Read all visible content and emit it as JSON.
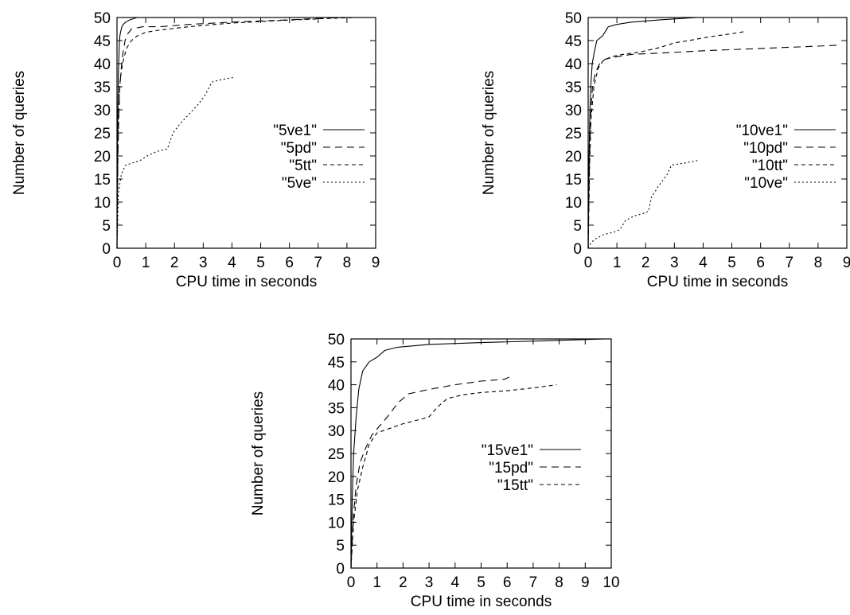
{
  "chart_data": [
    {
      "type": "line",
      "title": "",
      "xlabel": "CPU time in seconds",
      "ylabel": "Number of queries",
      "xlim": [
        0,
        9
      ],
      "ylim": [
        0,
        50
      ],
      "xticks": [
        0,
        1,
        2,
        3,
        4,
        5,
        6,
        7,
        8,
        9
      ],
      "yticks": [
        0,
        5,
        10,
        15,
        20,
        25,
        30,
        35,
        40,
        45,
        50
      ],
      "grid": false,
      "legend": "right-middle",
      "series": [
        {
          "name": "\"5ve1\"",
          "dash": "solid",
          "x": [
            0,
            0.02,
            0.05,
            0.08,
            0.1,
            0.13,
            0.17,
            0.22,
            0.3,
            0.45,
            0.7,
            1.2
          ],
          "y": [
            0,
            25,
            38,
            44,
            46,
            47,
            48,
            48.5,
            49,
            49.5,
            50,
            50
          ]
        },
        {
          "name": "\"5pd\"",
          "dash": "dash",
          "x": [
            0,
            0.03,
            0.07,
            0.1,
            0.15,
            0.2,
            0.28,
            0.38,
            0.5,
            0.9,
            1.5,
            2.5,
            4,
            6,
            7.8
          ],
          "y": [
            0,
            20,
            30,
            35,
            39,
            42,
            45,
            46.5,
            47.5,
            48,
            48,
            48.5,
            49,
            49.5,
            50
          ]
        },
        {
          "name": "\"5tt\"",
          "dash": "short-dash",
          "x": [
            0,
            0.04,
            0.08,
            0.12,
            0.18,
            0.25,
            0.35,
            0.5,
            0.7,
            1,
            1.5,
            2.2,
            3,
            4,
            5.5,
            7,
            8.3
          ],
          "y": [
            0,
            25,
            33,
            37,
            39.5,
            41.5,
            43.5,
            45,
            46,
            46.8,
            47.3,
            47.8,
            48.3,
            48.8,
            49.3,
            49.7,
            50
          ]
        },
        {
          "name": "\"5ve\"",
          "dash": "dot",
          "x": [
            0,
            0.05,
            0.15,
            0.3,
            0.8,
            1.05,
            1.4,
            1.75,
            1.95,
            2.2,
            2.5,
            2.8,
            3.05,
            3.3,
            3.6,
            4.05
          ],
          "y": [
            0,
            12,
            16,
            18,
            19,
            20,
            21,
            21.5,
            25,
            27,
            29,
            31,
            33,
            36,
            36.5,
            37
          ]
        }
      ]
    },
    {
      "type": "line",
      "title": "",
      "xlabel": "CPU time in seconds",
      "ylabel": "Number of queries",
      "xlim": [
        0,
        9
      ],
      "ylim": [
        0,
        50
      ],
      "xticks": [
        0,
        1,
        2,
        3,
        4,
        5,
        6,
        7,
        8,
        9
      ],
      "yticks": [
        0,
        5,
        10,
        15,
        20,
        25,
        30,
        35,
        40,
        45,
        50
      ],
      "grid": false,
      "legend": "right-middle",
      "series": [
        {
          "name": "\"10ve1\"",
          "dash": "solid",
          "x": [
            0,
            0.03,
            0.06,
            0.1,
            0.14,
            0.2,
            0.3,
            0.5,
            0.7,
            1,
            1.5,
            2.5,
            3.8
          ],
          "y": [
            0,
            20,
            30,
            36,
            40,
            42,
            45,
            46,
            48,
            48.5,
            49,
            49.5,
            50
          ]
        },
        {
          "name": "\"10pd\"",
          "dash": "dash",
          "x": [
            0,
            0.05,
            0.1,
            0.15,
            0.25,
            0.4,
            0.6,
            1,
            1.5,
            2.5,
            4,
            6,
            8,
            8.7
          ],
          "y": [
            0,
            20,
            30,
            35,
            38,
            40,
            41,
            41.5,
            42,
            42.3,
            42.8,
            43.3,
            43.8,
            44
          ]
        },
        {
          "name": "\"10tt\"",
          "dash": "short-dash",
          "x": [
            0,
            0.05,
            0.1,
            0.2,
            0.35,
            0.5,
            0.8,
            1.2,
            1.8,
            2.5,
            3,
            3.5,
            4.2,
            5,
            5.5
          ],
          "y": [
            0,
            18,
            28,
            35,
            39,
            40.5,
            41.5,
            42,
            42.5,
            43.5,
            44.5,
            45,
            45.8,
            46.5,
            47
          ]
        },
        {
          "name": "\"10ve\"",
          "dash": "dot",
          "x": [
            0,
            0.1,
            0.25,
            0.55,
            0.9,
            1.1,
            1.3,
            1.6,
            1.9,
            2.1,
            2.2,
            2.45,
            2.75,
            2.9,
            3.4,
            3.8
          ],
          "y": [
            0,
            1.2,
            2,
            3,
            3.5,
            4,
            6,
            7,
            7.5,
            8,
            11,
            13.5,
            16,
            18,
            18.5,
            19
          ]
        }
      ]
    },
    {
      "type": "line",
      "title": "",
      "xlabel": "CPU time in seconds",
      "ylabel": "Number of queries",
      "xlim": [
        0,
        10
      ],
      "ylim": [
        0,
        50
      ],
      "xticks": [
        0,
        1,
        2,
        3,
        4,
        5,
        6,
        7,
        8,
        9,
        10
      ],
      "yticks": [
        0,
        5,
        10,
        15,
        20,
        25,
        30,
        35,
        40,
        45,
        50
      ],
      "grid": false,
      "legend": "right-middle",
      "series": [
        {
          "name": "\"15ve1\"",
          "dash": "solid",
          "x": [
            0,
            0.05,
            0.1,
            0.2,
            0.3,
            0.45,
            0.7,
            1,
            1.3,
            1.8,
            3,
            5,
            7.5,
            9.8
          ],
          "y": [
            0,
            15,
            25,
            33,
            39,
            43,
            45,
            46,
            47.5,
            48.2,
            48.8,
            49.2,
            49.6,
            50
          ]
        },
        {
          "name": "\"15pd\"",
          "dash": "dash",
          "x": [
            0,
            0.1,
            0.2,
            0.35,
            0.55,
            0.8,
            1.1,
            1.4,
            1.8,
            2.2,
            3,
            4,
            5,
            5.9,
            6.2
          ],
          "y": [
            0,
            12,
            18,
            23,
            26,
            29,
            31,
            33,
            36,
            38,
            39,
            40,
            40.8,
            41.2,
            42
          ]
        },
        {
          "name": "\"15tt\"",
          "dash": "short-dash",
          "x": [
            0,
            0.1,
            0.25,
            0.45,
            0.7,
            1,
            1.5,
            2,
            2.7,
            3,
            3.3,
            3.7,
            4.3,
            5,
            6,
            7,
            7.9
          ],
          "y": [
            0,
            10,
            17,
            22,
            27,
            29.5,
            30.5,
            31.5,
            32.5,
            33,
            35,
            37,
            37.8,
            38.3,
            38.7,
            39.3,
            40
          ]
        }
      ]
    }
  ]
}
